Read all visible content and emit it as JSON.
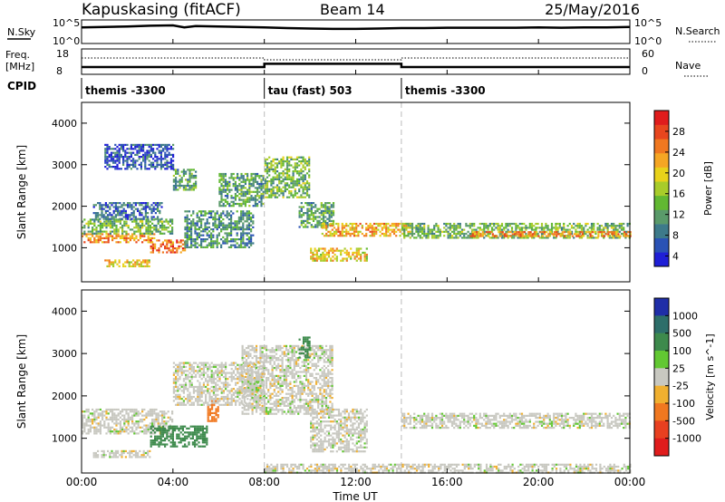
{
  "header": {
    "station": "Kapuskasing (fitACF)",
    "beam": "Beam 14",
    "date": "25/May/2016"
  },
  "noise_panel": {
    "left_label": "N.Sky",
    "left_ticks": [
      "10^5",
      "10^0"
    ],
    "right_ticks": [
      "10^5",
      "10^0"
    ],
    "right_label": "N.Search"
  },
  "freq_panel": {
    "left_label_line1": "Freq.",
    "left_label_line2": "[MHz]",
    "left_ticks": [
      "18",
      "8"
    ],
    "right_ticks": [
      "60",
      "0"
    ],
    "right_label": "Nave"
  },
  "cpid_panel": {
    "label": "CPID",
    "segments": [
      {
        "start_hour": 0,
        "end_hour": 8,
        "label": "themis -3300"
      },
      {
        "start_hour": 8,
        "end_hour": 14,
        "label": "tau (fast) 503"
      },
      {
        "start_hour": 14,
        "end_hour": 24,
        "label": "themis -3300"
      }
    ]
  },
  "x_axis": {
    "label": "Time UT",
    "ticks": [
      "00:00",
      "04:00",
      "08:00",
      "12:00",
      "16:00",
      "20:00",
      "00:00"
    ]
  },
  "power_colorbar": {
    "label": "Power [dB]",
    "ticks": [
      "28",
      "24",
      "20",
      "16",
      "12",
      "8",
      "4"
    ],
    "colors": [
      "#1f1fd6",
      "#2a52b5",
      "#3d7a8a",
      "#5a9a6a",
      "#62b832",
      "#a8cc2a",
      "#e8d21a",
      "#f5a623",
      "#f07820",
      "#e8461e",
      "#e01c1c"
    ]
  },
  "velocity_colorbar": {
    "label": "Velocity [m s^-1]",
    "ticks": [
      "1000",
      "500",
      "100",
      "25",
      "-25",
      "-100",
      "-500",
      "-1000"
    ],
    "colors": [
      "#1f2ea8",
      "#2d6e6a",
      "#3d8a4c",
      "#62c832",
      "#c8c8c0",
      "#f0b030",
      "#f07820",
      "#e84020",
      "#e01c1c"
    ]
  },
  "chart_data": [
    {
      "type": "line",
      "title": "",
      "xlabel": "",
      "ylabel": "N.Sky",
      "xlim": [
        0,
        24
      ],
      "series": [
        {
          "name": "N.Sky",
          "x": [
            0.0,
            1.0,
            2.0,
            3.0,
            4.0,
            4.5,
            5.0,
            6.0,
            7.0,
            8.0,
            9.0,
            10.0,
            11.0,
            12.0,
            13.0,
            14.0,
            15.0,
            16.0,
            17.0,
            18.0,
            19.0,
            20.0,
            21.0,
            22.0,
            23.0,
            24.0
          ],
          "values": [
            3.6,
            3.7,
            3.8,
            4.0,
            4.1,
            3.6,
            3.9,
            3.8,
            3.7,
            3.6,
            3.4,
            3.3,
            3.2,
            3.2,
            3.3,
            3.4,
            3.4,
            3.5,
            3.5,
            3.5,
            3.5,
            3.6,
            3.5,
            3.6,
            3.6,
            3.7
          ]
        }
      ]
    },
    {
      "type": "line",
      "title": "",
      "xlabel": "",
      "ylabel": "Freq. [MHz]",
      "xlim": [
        0,
        24
      ],
      "ylim": [
        8,
        18
      ],
      "series": [
        {
          "name": "Freq.",
          "x": [
            0,
            8,
            8,
            14,
            14,
            24
          ],
          "values": [
            10.5,
            10.5,
            12.0,
            12.0,
            10.5,
            10.5
          ]
        },
        {
          "name": "Nave",
          "x": [
            0,
            8,
            8,
            14,
            14,
            24
          ],
          "values": [
            40,
            40,
            35,
            35,
            40,
            40
          ]
        }
      ]
    },
    {
      "type": "heatmap",
      "title": "",
      "xlabel": "",
      "ylabel": "Slant Range [km]",
      "xlim": [
        0,
        24
      ],
      "ylim": [
        180,
        4500
      ],
      "yticks": [
        1000,
        2000,
        3000,
        4000
      ],
      "colorbar": "Power [dB]",
      "regions": [
        {
          "t0": 0.0,
          "t1": 3.2,
          "r0": 1150,
          "r1": 1350,
          "power": 24
        },
        {
          "t0": 0.0,
          "t1": 4.0,
          "r0": 1350,
          "r1": 1700,
          "power": 14
        },
        {
          "t0": 0.5,
          "t1": 3.5,
          "r0": 1700,
          "r1": 2100,
          "power": 8
        },
        {
          "t0": 1.0,
          "t1": 3.0,
          "r0": 550,
          "r1": 720,
          "power": 20
        },
        {
          "t0": 3.0,
          "t1": 4.5,
          "r0": 900,
          "r1": 1200,
          "power": 26
        },
        {
          "t0": 4.0,
          "t1": 5.0,
          "r0": 2400,
          "r1": 2900,
          "power": 12
        },
        {
          "t0": 4.5,
          "t1": 7.5,
          "r0": 1000,
          "r1": 1900,
          "power": 10
        },
        {
          "t0": 1.0,
          "t1": 4.0,
          "r0": 2900,
          "r1": 3500,
          "power": 6
        },
        {
          "t0": 6.0,
          "t1": 8.0,
          "r0": 2000,
          "r1": 2800,
          "power": 12
        },
        {
          "t0": 8.0,
          "t1": 10.0,
          "r0": 2200,
          "r1": 3200,
          "power": 14
        },
        {
          "t0": 9.5,
          "t1": 11.0,
          "r0": 1500,
          "r1": 2100,
          "power": 12
        },
        {
          "t0": 10.0,
          "t1": 12.5,
          "r0": 700,
          "r1": 1000,
          "power": 20
        },
        {
          "t0": 10.5,
          "t1": 14.5,
          "r0": 1300,
          "r1": 1600,
          "power": 22
        },
        {
          "t0": 14.0,
          "t1": 24.0,
          "r0": 1250,
          "r1": 1600,
          "power": 14
        },
        {
          "t0": 17.0,
          "t1": 24.0,
          "r0": 1300,
          "r1": 1400,
          "power": 24
        }
      ]
    },
    {
      "type": "heatmap",
      "title": "",
      "xlabel": "Time UT",
      "ylabel": "Slant Range [km]",
      "xlim": [
        0,
        24
      ],
      "ylim": [
        180,
        4500
      ],
      "yticks": [
        1000,
        2000,
        3000,
        4000
      ],
      "colorbar": "Velocity [m s^-1]",
      "regions": [
        {
          "t0": 0.0,
          "t1": 4.0,
          "r0": 1100,
          "r1": 1700,
          "velocity": 0
        },
        {
          "t0": 0.5,
          "t1": 3.0,
          "r0": 550,
          "r1": 720,
          "velocity": 0
        },
        {
          "t0": 3.0,
          "t1": 5.5,
          "r0": 800,
          "r1": 1300,
          "velocity": 100
        },
        {
          "t0": 5.5,
          "t1": 6.0,
          "r0": 1400,
          "r1": 1900,
          "velocity": -300
        },
        {
          "t0": 4.0,
          "t1": 8.0,
          "r0": 1800,
          "r1": 2800,
          "velocity": 0
        },
        {
          "t0": 7.0,
          "t1": 11.0,
          "r0": 1600,
          "r1": 3200,
          "velocity": 0
        },
        {
          "t0": 9.5,
          "t1": 10.0,
          "r0": 2900,
          "r1": 3400,
          "velocity": 150
        },
        {
          "t0": 10.0,
          "t1": 12.5,
          "r0": 700,
          "r1": 1700,
          "velocity": 0
        },
        {
          "t0": 14.0,
          "t1": 24.0,
          "r0": 1250,
          "r1": 1600,
          "velocity": 0
        },
        {
          "t0": 8.0,
          "t1": 24.0,
          "r0": 200,
          "r1": 400,
          "velocity": 0
        }
      ]
    }
  ]
}
